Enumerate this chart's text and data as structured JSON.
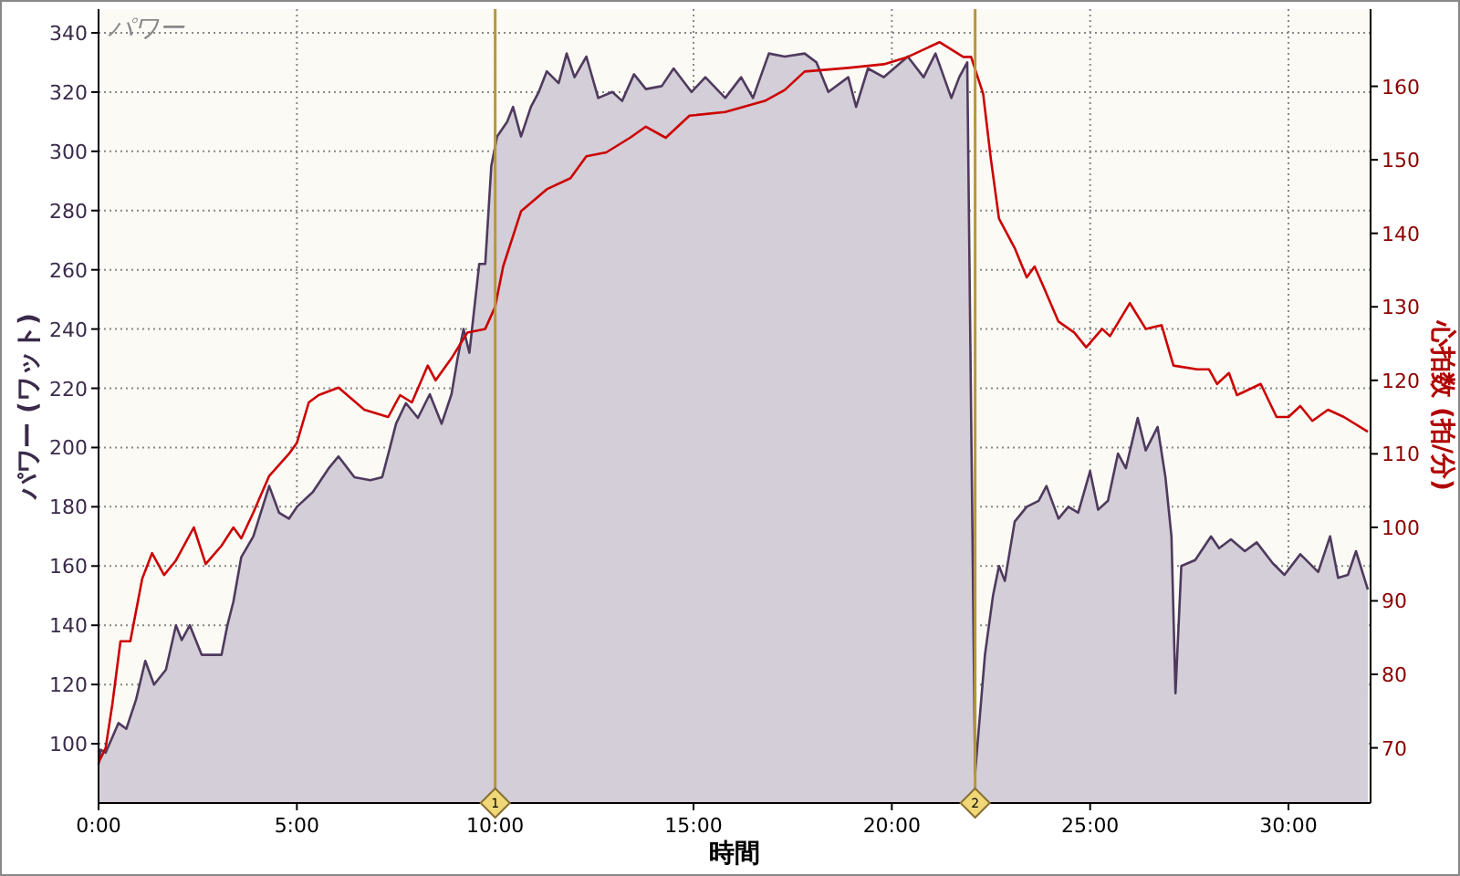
{
  "chart_data": {
    "type": "area",
    "title": "パワー",
    "xlabel": "時間",
    "ylabel": "パワー (ワット)",
    "y2label": "心拍数 (拍/分)",
    "xlim": [
      0,
      32.07
    ],
    "xticks": [
      {
        "value": 0,
        "label": "0:00"
      },
      {
        "value": 5,
        "label": "5:00"
      },
      {
        "value": 10,
        "label": "10:00"
      },
      {
        "value": 15,
        "label": "15:00"
      },
      {
        "value": 20,
        "label": "20:00"
      },
      {
        "value": 25,
        "label": "25:00"
      },
      {
        "value": 30,
        "label": "30:00"
      }
    ],
    "ylim": [
      80,
      348
    ],
    "yticks": [
      100,
      120,
      140,
      160,
      180,
      200,
      220,
      240,
      260,
      280,
      300,
      320,
      340
    ],
    "y2lim": [
      62.5,
      170.5
    ],
    "y2ticks": [
      70,
      80,
      90,
      100,
      110,
      120,
      130,
      140,
      150,
      160
    ],
    "grid": true,
    "series": [
      {
        "color": "#4f3a5e",
        "x": [
          0,
          0.05,
          0.18,
          0.5,
          0.7,
          0.95,
          1.18,
          1.4,
          1.7,
          1.95,
          2.1,
          2.3,
          2.6,
          3.1,
          3.25,
          3.4,
          3.6,
          3.9,
          4.3,
          4.55,
          4.8,
          5.0,
          5.4,
          5.8,
          6.05,
          6.45,
          6.85,
          7.15,
          7.35,
          7.5,
          7.75,
          8.05,
          8.35,
          8.65,
          8.9,
          9.05,
          9.2,
          9.35,
          9.6,
          9.75,
          9.9,
          10.05,
          10.3,
          10.45,
          10.65,
          10.9,
          11.1,
          11.3,
          11.6,
          11.8,
          12.0,
          12.3,
          12.6,
          12.95,
          13.2,
          13.5,
          13.8,
          14.2,
          14.5,
          14.95,
          15.3,
          15.8,
          16.2,
          16.5,
          16.9,
          17.3,
          17.8,
          18.1,
          18.4,
          18.9,
          19.1,
          19.4,
          19.8,
          20.4,
          20.8,
          21.1,
          21.5,
          21.7,
          21.9,
          22.1,
          22.35,
          22.55,
          22.7,
          22.85,
          23.1,
          23.4,
          23.7,
          23.9,
          24.2,
          24.45,
          24.7,
          25.0,
          25.2,
          25.45,
          25.7,
          25.9,
          26.2,
          26.4,
          26.7,
          26.9,
          27.05,
          27.15,
          27.3,
          27.65,
          28.05,
          28.25,
          28.55,
          28.9,
          29.2,
          29.6,
          29.9,
          30.3,
          30.75,
          31.05,
          31.25,
          31.5,
          31.7,
          32.0
        ],
        "values": [
          93,
          98,
          97,
          107,
          105,
          115,
          128,
          120,
          125,
          140,
          135,
          140,
          130,
          130,
          140,
          148,
          163,
          170,
          187,
          178,
          176,
          180,
          185,
          193,
          197,
          190,
          189,
          190,
          200,
          208,
          215,
          210,
          218,
          208,
          218,
          230,
          240,
          232,
          262,
          262,
          295,
          305,
          310,
          315,
          305,
          315,
          320,
          327,
          323,
          333,
          325,
          332,
          318,
          320,
          317,
          326,
          321,
          322,
          328,
          320,
          325,
          318,
          325,
          318,
          333,
          332,
          333,
          330,
          320,
          325,
          315,
          328,
          325,
          332,
          325,
          333,
          318,
          325,
          330,
          90,
          130,
          150,
          160,
          155,
          175,
          180,
          182,
          187,
          176,
          180,
          178,
          192,
          179,
          182,
          198,
          193,
          210,
          199,
          207,
          190,
          170,
          117,
          160,
          162,
          170,
          166,
          169,
          165,
          168,
          161,
          157,
          164,
          158,
          170,
          156,
          157,
          165,
          152
        ]
      },
      {
        "type": "line",
        "axis": "y2",
        "color": "#cc0000",
        "x": [
          0,
          0.18,
          0.35,
          0.55,
          0.8,
          1.1,
          1.35,
          1.65,
          1.95,
          2.4,
          2.7,
          3.1,
          3.4,
          3.6,
          3.9,
          4.3,
          4.8,
          5.0,
          5.3,
          5.55,
          6.05,
          6.7,
          7.3,
          7.6,
          7.9,
          8.3,
          8.5,
          8.9,
          9.3,
          9.75,
          10.0,
          10.2,
          10.65,
          11.3,
          11.9,
          12.3,
          12.8,
          13.4,
          13.8,
          14.3,
          14.9,
          15.8,
          16.8,
          17.3,
          17.8,
          18.9,
          19.8,
          20.4,
          21.2,
          21.8,
          22.0,
          22.3,
          22.5,
          22.7,
          23.1,
          23.4,
          23.6,
          23.8,
          24.2,
          24.6,
          24.9,
          25.3,
          25.5,
          26.0,
          26.4,
          26.8,
          27.1,
          27.7,
          28.0,
          28.2,
          28.5,
          28.7,
          29.3,
          29.7,
          30.0,
          30.3,
          30.6,
          31.0,
          31.4,
          32.0
        ],
        "values": [
          68,
          70,
          76,
          84.5,
          84.5,
          93,
          96.5,
          93.5,
          95.5,
          100,
          95,
          97.5,
          100,
          98.5,
          102,
          107,
          110,
          111.5,
          117,
          118,
          119,
          116,
          115,
          118,
          117,
          122,
          120,
          123,
          126.5,
          127,
          130,
          135.5,
          143,
          146,
          147.5,
          150.5,
          151,
          153,
          154.5,
          153,
          156,
          156.5,
          158,
          159.5,
          162,
          162.5,
          163,
          164,
          166,
          164,
          164,
          159,
          150,
          142,
          138,
          134,
          135.5,
          133,
          128,
          126.5,
          124.5,
          127,
          126,
          130.5,
          127,
          127.5,
          122,
          121.5,
          121.5,
          119.5,
          121,
          118,
          119.5,
          115,
          115,
          116.5,
          114.5,
          116,
          115,
          113
        ]
      }
    ],
    "ref_lines": [
      {
        "axis": "x",
        "value": 10.0,
        "color": "#b8963c"
      },
      {
        "axis": "x",
        "value": 22.1,
        "color": "#b8963c"
      }
    ],
    "annotations": [
      {
        "text": "1",
        "x": 10.0,
        "y": 80
      },
      {
        "text": "2",
        "x": 22.1,
        "y": 80
      }
    ]
  }
}
